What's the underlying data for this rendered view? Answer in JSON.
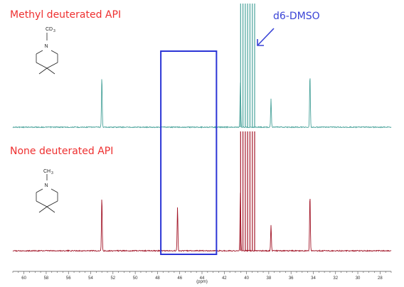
{
  "figure": {
    "label_top": "Methyl deuterated API",
    "label_bottom": "None deuterated API",
    "solvent_label": "d6-DMSO",
    "x_unit": "(ppm)",
    "structure_top": {
      "atom": "N",
      "substituent": "CD",
      "subscript": "3"
    },
    "structure_bottom": {
      "atom": "N",
      "substituent": "CH",
      "subscript": "3"
    }
  },
  "chart_data": {
    "type": "line",
    "xlabel": "(ppm)",
    "ylabel": "",
    "x_reversed": true,
    "xlim": [
      61,
      27
    ],
    "ticks": [
      60,
      58,
      56,
      54,
      52,
      50,
      48,
      46,
      44,
      42,
      40,
      38,
      36,
      34,
      32,
      30,
      28
    ],
    "highlight_region": [
      47.7,
      42.7
    ],
    "series": [
      {
        "name": "Methyl deuterated API",
        "color": "#4aa39b",
        "peaks": [
          {
            "ppm": 53.0,
            "rel_height": 0.4
          },
          {
            "ppm": 40.55,
            "rel_height": 0.35
          },
          {
            "ppm": 37.8,
            "rel_height": 0.22
          },
          {
            "ppm": 34.3,
            "rel_height": 0.42
          }
        ]
      },
      {
        "name": "None deuterated API",
        "color": "#a3182a",
        "peaks": [
          {
            "ppm": 53.0,
            "rel_height": 0.42
          },
          {
            "ppm": 46.2,
            "rel_height": 0.34
          },
          {
            "ppm": 40.55,
            "rel_height": 0.45
          },
          {
            "ppm": 37.8,
            "rel_height": 0.2
          },
          {
            "ppm": 34.3,
            "rel_height": 0.44
          }
        ]
      }
    ],
    "solvent_multiplet": {
      "center_ppm": 39.9,
      "offset_ppm": 0.21,
      "lines": 7
    }
  }
}
